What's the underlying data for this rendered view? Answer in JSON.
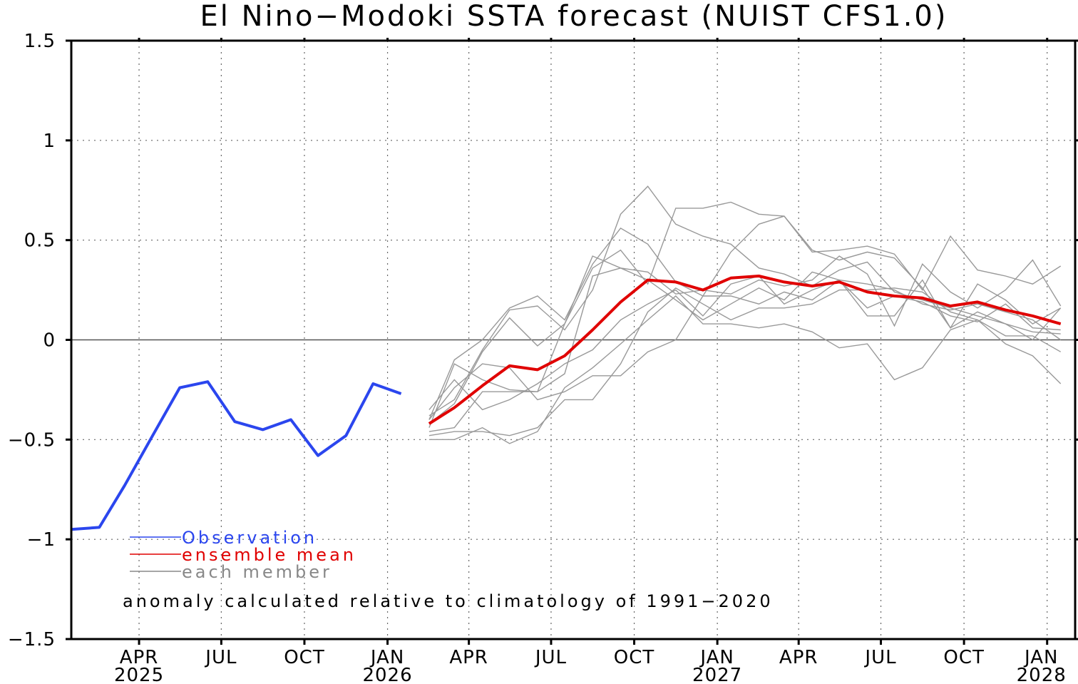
{
  "chart_data": {
    "type": "line",
    "title": "El Nino−Modoki SSTA forecast (NUIST CFS1.0)",
    "annotation": "anomaly calculated relative to climatology of 1991−2020",
    "xlabel": "",
    "ylabel": "",
    "ylim": [
      -1.5,
      1.5
    ],
    "xlim": [
      "2025-01-16",
      "2028-02-01"
    ],
    "yticks": [
      -1.5,
      -1,
      -0.5,
      0,
      0.5,
      1,
      1.5
    ],
    "ytick_labels": [
      "−1.5",
      "−1",
      "−0.5",
      "0",
      "0.5",
      "1",
      "1.5"
    ],
    "xticks": [
      {
        "date": "2025-04-01",
        "label": "APR",
        "year": "2025"
      },
      {
        "date": "2025-07-01",
        "label": "JUL",
        "year": ""
      },
      {
        "date": "2025-10-01",
        "label": "OCT",
        "year": ""
      },
      {
        "date": "2026-01-01",
        "label": "JAN",
        "year": "2026"
      },
      {
        "date": "2026-04-01",
        "label": "APR",
        "year": ""
      },
      {
        "date": "2026-07-01",
        "label": "JUL",
        "year": ""
      },
      {
        "date": "2026-10-01",
        "label": "OCT",
        "year": ""
      },
      {
        "date": "2027-01-01",
        "label": "JAN",
        "year": "2027"
      },
      {
        "date": "2027-04-01",
        "label": "APR",
        "year": ""
      },
      {
        "date": "2027-07-01",
        "label": "JUL",
        "year": ""
      },
      {
        "date": "2027-10-01",
        "label": "OCT",
        "year": ""
      },
      {
        "date": "2028-01-01",
        "label": "JAN",
        "year": "2028"
      }
    ],
    "grid": true,
    "legend_position": "bottom-left",
    "observation": {
      "name": "Observation",
      "color": "#2b46ee",
      "x": [
        "2025-01-16",
        "2025-02-16",
        "2025-03-16",
        "2025-04-16",
        "2025-05-16",
        "2025-06-16",
        "2025-07-16",
        "2025-08-16",
        "2025-09-16",
        "2025-10-16",
        "2025-11-16",
        "2025-12-16",
        "2026-01-16"
      ],
      "y": [
        -0.95,
        -0.94,
        -0.73,
        -0.48,
        -0.24,
        -0.21,
        -0.41,
        -0.45,
        -0.4,
        -0.58,
        -0.48,
        -0.22,
        -0.27
      ]
    },
    "ensemble_mean": {
      "name": "ensemble mean",
      "color": "#e00000",
      "x": [
        "2026-02-16",
        "2026-03-16",
        "2026-04-16",
        "2026-05-16",
        "2026-06-16",
        "2026-07-16",
        "2026-08-16",
        "2026-09-16",
        "2026-10-16",
        "2026-11-16",
        "2026-12-16",
        "2027-01-16",
        "2027-02-16",
        "2027-03-16",
        "2027-04-16",
        "2027-05-16",
        "2027-06-16",
        "2027-07-16",
        "2027-08-16",
        "2027-09-16",
        "2027-10-16",
        "2027-11-16",
        "2027-12-16",
        "2028-01-16"
      ],
      "y": [
        -0.42,
        -0.34,
        -0.23,
        -0.13,
        -0.15,
        -0.08,
        0.05,
        0.19,
        0.3,
        0.29,
        0.25,
        0.31,
        0.32,
        0.29,
        0.27,
        0.29,
        0.24,
        0.22,
        0.21,
        0.17,
        0.19,
        0.15,
        0.12,
        0.08
      ]
    },
    "members": {
      "name": "each member",
      "color": "#999999",
      "x": [
        "2026-02-16",
        "2026-03-16",
        "2026-04-16",
        "2026-05-16",
        "2026-06-16",
        "2026-07-16",
        "2026-08-16",
        "2026-09-16",
        "2026-10-16",
        "2026-11-16",
        "2026-12-16",
        "2027-01-16",
        "2027-02-16",
        "2027-03-16",
        "2027-04-16",
        "2027-05-16",
        "2027-06-16",
        "2027-07-16",
        "2027-08-16",
        "2027-09-16",
        "2027-10-16",
        "2027-11-16",
        "2027-12-16",
        "2028-01-16"
      ],
      "series": [
        [
          -0.38,
          -0.3,
          -0.05,
          0.15,
          0.17,
          0.05,
          0.25,
          0.63,
          0.77,
          0.58,
          0.52,
          0.48,
          0.36,
          0.33,
          0.27,
          0.35,
          0.39,
          0.24,
          0.2,
          0.16,
          0.12,
          0.08,
          0.04,
          0.03
        ],
        [
          -0.4,
          -0.1,
          0.0,
          0.16,
          0.22,
          0.1,
          0.38,
          0.56,
          0.48,
          0.29,
          0.22,
          0.44,
          0.58,
          0.62,
          0.45,
          0.4,
          0.44,
          0.41,
          0.26,
          0.06,
          0.28,
          0.2,
          0.08,
          0.16
        ],
        [
          -0.42,
          -0.32,
          -0.06,
          0.11,
          -0.03,
          0.08,
          0.36,
          0.45,
          0.28,
          0.66,
          0.66,
          0.69,
          0.63,
          0.62,
          0.44,
          0.45,
          0.47,
          0.43,
          0.25,
          0.52,
          0.35,
          0.32,
          0.28,
          0.37
        ],
        [
          -0.44,
          -0.12,
          -0.2,
          -0.25,
          -0.26,
          0.08,
          0.42,
          0.36,
          0.34,
          0.23,
          0.25,
          0.23,
          0.3,
          0.27,
          0.3,
          0.42,
          0.33,
          0.07,
          0.38,
          0.24,
          0.16,
          0.25,
          0.4,
          0.17
        ],
        [
          -0.46,
          -0.44,
          -0.26,
          -0.26,
          -0.26,
          -0.17,
          0.32,
          0.36,
          0.3,
          0.2,
          0.1,
          0.18,
          0.26,
          0.2,
          0.34,
          0.3,
          0.16,
          0.22,
          0.19,
          0.12,
          0.09,
          0.18,
          0.06,
          0.05
        ],
        [
          -0.48,
          -0.46,
          -0.46,
          -0.48,
          -0.44,
          -0.3,
          -0.3,
          -0.12,
          0.14,
          0.26,
          0.18,
          0.1,
          0.16,
          0.16,
          0.18,
          0.25,
          0.25,
          0.26,
          0.24,
          0.14,
          0.1,
          0.02,
          0.02,
          -0.06
        ],
        [
          -0.5,
          -0.5,
          -0.44,
          -0.52,
          -0.46,
          -0.24,
          -0.14,
          -0.02,
          0.1,
          0.22,
          0.08,
          0.08,
          0.06,
          0.08,
          0.04,
          -0.04,
          -0.02,
          -0.2,
          -0.14,
          0.05,
          0.1,
          -0.02,
          -0.08,
          -0.22
        ],
        [
          -0.4,
          -0.24,
          -0.12,
          -0.14,
          -0.3,
          -0.26,
          -0.18,
          -0.18,
          -0.06,
          0.0,
          0.22,
          0.22,
          0.18,
          0.24,
          0.2,
          0.3,
          0.12,
          0.12,
          0.3,
          0.06,
          0.14,
          0.08,
          0.0,
          0.16
        ],
        [
          -0.35,
          -0.2,
          -0.35,
          -0.3,
          -0.22,
          -0.12,
          -0.05,
          0.1,
          0.18,
          0.25,
          0.12,
          0.28,
          0.32,
          0.18,
          0.25,
          0.3,
          0.28,
          0.25,
          0.18,
          0.15,
          0.18,
          0.14,
          0.1,
          0.0
        ]
      ]
    }
  }
}
